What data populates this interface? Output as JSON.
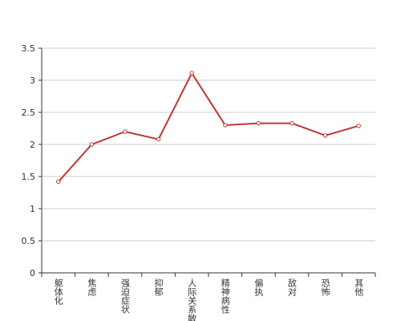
{
  "chart_data": {
    "type": "line",
    "categories": [
      "躯体化",
      "焦虑",
      "强迫症状",
      "抑郁",
      "人际关系敏感",
      "精神病性",
      "偏执",
      "敌对",
      "恐怖",
      "其他"
    ],
    "values": [
      1.42,
      2.0,
      2.2,
      2.08,
      3.11,
      2.3,
      2.33,
      2.33,
      2.14,
      2.29
    ],
    "color": "#c23531",
    "ylim": [
      0,
      3.5
    ],
    "yticks": [
      0,
      0.5,
      1,
      1.5,
      2,
      2.5,
      3,
      3.5
    ],
    "grid": true
  }
}
